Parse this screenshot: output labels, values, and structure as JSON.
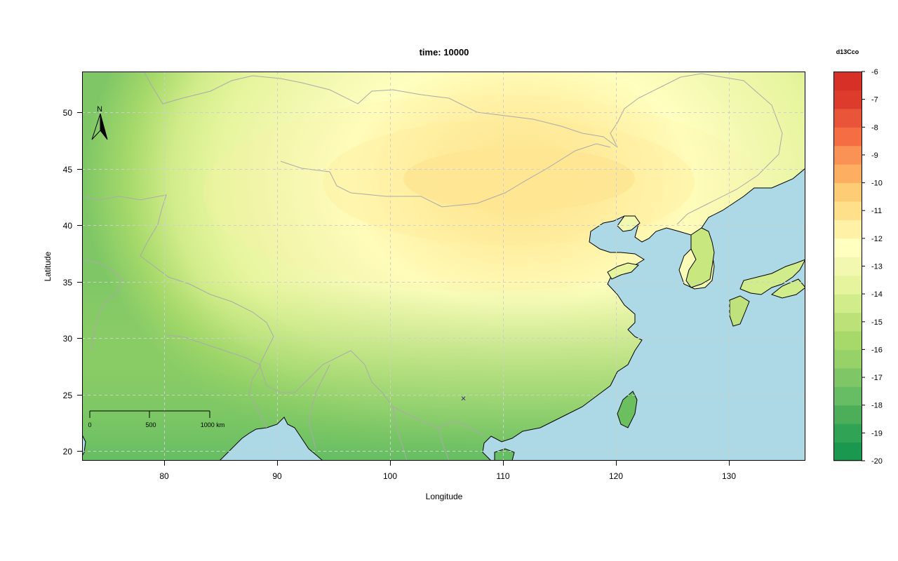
{
  "title": "time: 10000",
  "axes": {
    "xlabel": "Longitude",
    "ylabel": "Latitude",
    "xlim": [
      72.7,
      136.8
    ],
    "ylim": [
      19.2,
      53.7
    ],
    "xticks": [
      "80",
      "90",
      "100",
      "110",
      "120",
      "130"
    ],
    "yticks": [
      "20",
      "25",
      "30",
      "35",
      "40",
      "45",
      "50"
    ],
    "grid": true
  },
  "legend": {
    "title": "d13Cco",
    "range": [
      -20,
      -6
    ],
    "step": 0.7,
    "tick_labels": [
      "-6",
      "-7",
      "-8",
      "-9",
      "-10",
      "-11",
      "-12",
      "-13",
      "-14",
      "-15",
      "-16",
      "-17",
      "-18",
      "-19",
      "-20"
    ],
    "colors": [
      "#1a9850",
      "#31a354",
      "#4cae58",
      "#66bd63",
      "#7fc766",
      "#96d268",
      "#a6d96a",
      "#bce179",
      "#d1ec8a",
      "#e6f59d",
      "#f2f8b0",
      "#ffffbf",
      "#fff2a6",
      "#fee08b",
      "#fdcc75",
      "#fdae61",
      "#f99254",
      "#f46d43",
      "#e85538",
      "#dd3b2c",
      "#d73027"
    ]
  },
  "north_arrow": {
    "label": "N"
  },
  "scale_bar": {
    "labels": [
      "0",
      "500",
      "1000 km"
    ]
  },
  "marker": {
    "symbol": "×",
    "lon": 106.5,
    "lat": 24.7
  },
  "colors": {
    "ocean": "#add8e6",
    "land_border": "#000000",
    "country_border": "#aaaaaa"
  }
}
